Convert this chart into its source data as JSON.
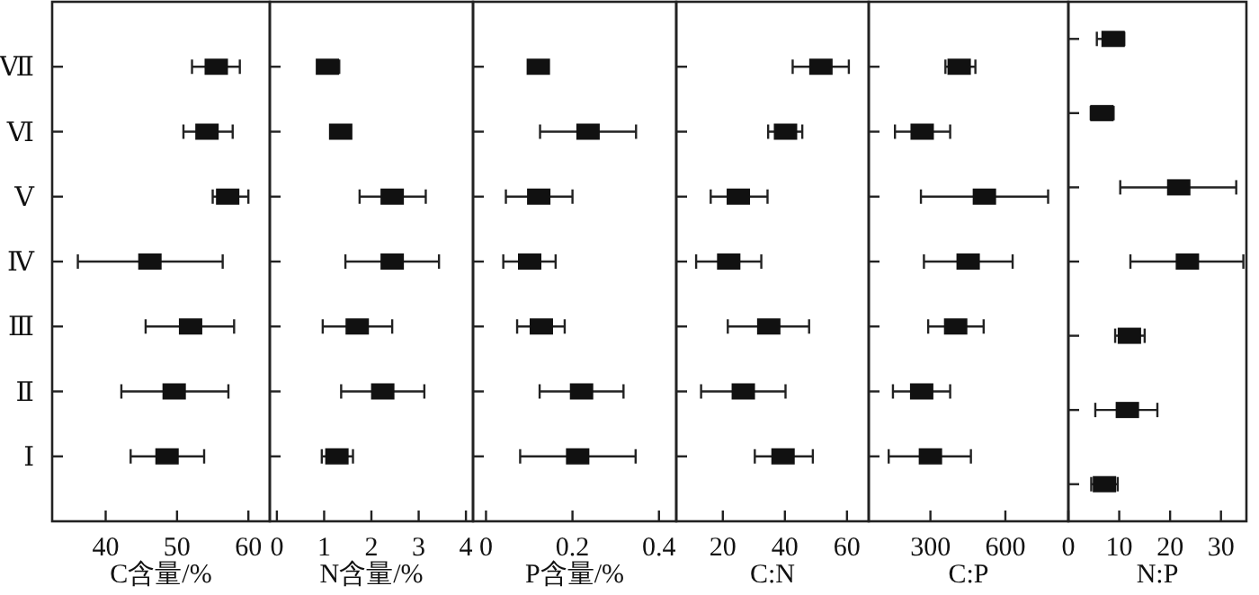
{
  "chart_data": [
    {
      "type": "scatter",
      "orientation": "horizontal",
      "marker": "square",
      "color": "#111111",
      "xlabel": "C含量/%",
      "categories": [
        "Ⅶ",
        "Ⅵ",
        "Ⅴ",
        "Ⅳ",
        "Ⅲ",
        "Ⅱ",
        "Ⅰ"
      ],
      "values": [
        55.5,
        54.2,
        57.1,
        46.2,
        51.9,
        49.6,
        48.6
      ],
      "errors": [
        [
          52.1,
          58.8
        ],
        [
          50.9,
          57.8
        ],
        [
          55,
          60
        ],
        [
          36.1,
          56.4
        ],
        [
          45.6,
          58
        ],
        [
          42.2,
          57.2
        ],
        [
          43.5,
          53.8
        ]
      ],
      "xlim": [
        32.5,
        63
      ],
      "xticks": [
        40,
        50,
        60
      ]
    },
    {
      "type": "scatter",
      "orientation": "horizontal",
      "marker": "square",
      "color": "#111111",
      "xlabel": "N含量/%",
      "tick_labels": "x",
      "categories": [
        null,
        null,
        null,
        null,
        null,
        null,
        null
      ],
      "values": [
        1.07,
        1.35,
        2.44,
        2.44,
        1.7,
        2.24,
        1.27
      ],
      "errors": [
        [
          0.87,
          1.32
        ],
        [
          1.16,
          1.54
        ],
        [
          1.75,
          3.15
        ],
        [
          1.45,
          3.43
        ],
        [
          0.97,
          2.44
        ],
        [
          1.36,
          3.12
        ],
        [
          0.95,
          1.61
        ]
      ],
      "xlim": [
        -0.15,
        4.15
      ],
      "xticks": [
        0,
        1,
        2,
        3,
        4
      ]
    },
    {
      "type": "scatter",
      "orientation": "horizontal",
      "marker": "square",
      "color": "#111111",
      "xlabel": "P含量/%",
      "tick_labels": "x",
      "categories": [
        null,
        null,
        null,
        null,
        null,
        null,
        null
      ],
      "values": [
        0.121,
        0.236,
        0.122,
        0.101,
        0.128,
        0.221,
        0.212
      ],
      "errors": [
        null,
        [
          0.125,
          0.347
        ],
        [
          0.046,
          0.2
        ],
        [
          0.04,
          0.161
        ],
        [
          0.072,
          0.182
        ],
        [
          0.124,
          0.318
        ],
        [
          0.079,
          0.346
        ]
      ],
      "xlim": [
        -0.03,
        0.44
      ],
      "xticks": [
        0,
        0.2,
        0.4
      ]
    },
    {
      "type": "scatter",
      "orientation": "horizontal",
      "marker": "square",
      "color": "#111111",
      "xlabel": "C:N",
      "tick_labels": "x",
      "categories": [
        null,
        null,
        null,
        null,
        null,
        null,
        null
      ],
      "values": [
        51.6,
        40.2,
        25,
        21.9,
        34.8,
        26.6,
        39.4
      ],
      "errors": [
        [
          42.5,
          60.6
        ],
        [
          34.6,
          45.6
        ],
        [
          16.1,
          34.4
        ],
        [
          11.4,
          32.4
        ],
        [
          21.6,
          47.8
        ],
        [
          13,
          40.2
        ],
        [
          30.3,
          49
        ]
      ],
      "xlim": [
        5,
        67
      ],
      "xticks": [
        20,
        40,
        60
      ]
    },
    {
      "type": "scatter",
      "orientation": "horizontal",
      "marker": "square",
      "color": "#111111",
      "xlabel": "C:P",
      "tick_labels": "x",
      "categories": [
        null,
        null,
        null,
        null,
        null,
        null,
        null
      ],
      "values": [
        415,
        267,
        516,
        451,
        401,
        265,
        300
      ],
      "errors": [
        [
          360,
          480
        ],
        [
          158,
          379
        ],
        [
          262,
          771
        ],
        [
          274,
          629
        ],
        [
          291,
          513
        ],
        [
          150,
          379
        ],
        [
          133,
          462
        ]
      ],
      "xlim": [
        53,
        852
      ],
      "xticks": [
        300,
        600
      ]
    },
    {
      "type": "scatter",
      "orientation": "horizontal",
      "marker": "square",
      "color": "#111111",
      "xlabel": "N:P",
      "tick_labels": "x",
      "categories": [
        null,
        null,
        null,
        null,
        null,
        null,
        null
      ],
      "values": [
        8.8,
        6.6,
        21.7,
        23.4,
        12,
        11.6,
        7.1
      ],
      "errors": [
        [
          5.6,
          11
        ],
        [
          4.4,
          8.9
        ],
        [
          10.2,
          33
        ],
        [
          12.2,
          34.4
        ],
        [
          9.2,
          15
        ],
        [
          5.3,
          17.5
        ],
        [
          4.5,
          9.7
        ]
      ],
      "xlim": [
        0,
        35
      ],
      "xticks": [
        0,
        10,
        20,
        30
      ]
    }
  ]
}
